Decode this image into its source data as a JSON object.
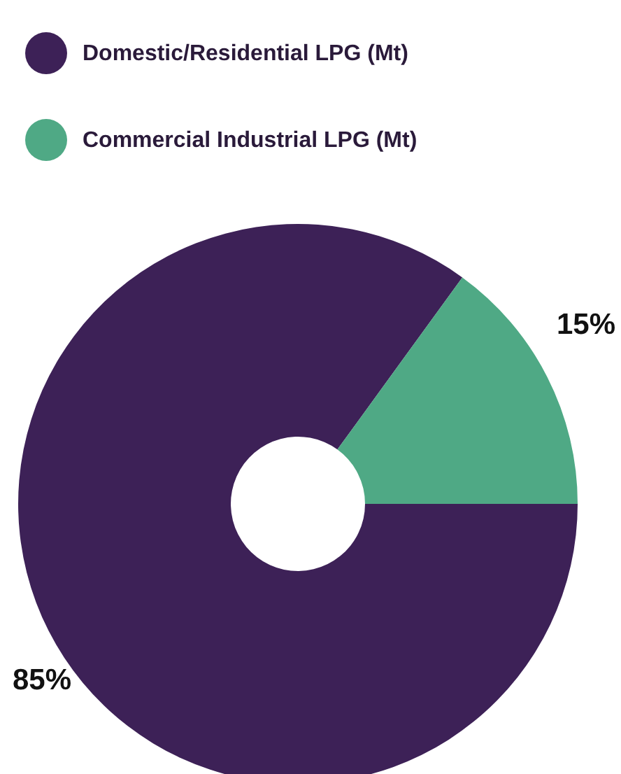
{
  "chart_data": {
    "type": "donut",
    "categories": [
      "Domestic/Residential LPG (Mt)",
      "Commercial Industrial LPG (Mt)"
    ],
    "values": [
      85,
      15
    ],
    "colors": [
      "#3d2157",
      "#4fa985"
    ],
    "value_labels": [
      "85%",
      "15%"
    ],
    "legend": "top left"
  }
}
